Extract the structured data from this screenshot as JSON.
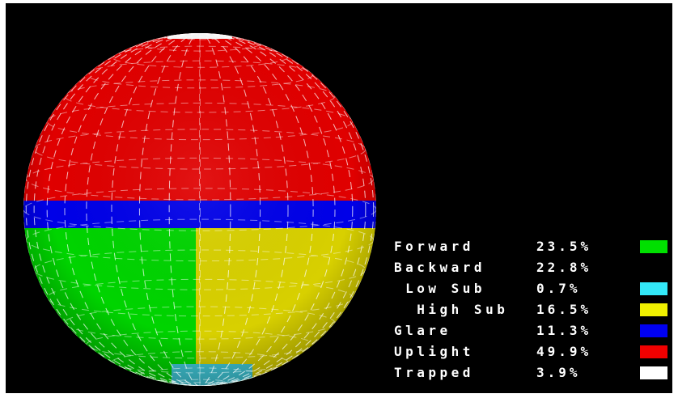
{
  "background_color": "#000000",
  "sphere": {
    "regions": [
      {
        "name": "uplight-region",
        "color": "#e00000"
      },
      {
        "name": "glare-region",
        "color": "#0000e8"
      },
      {
        "name": "forward-region",
        "color": "#00d400"
      },
      {
        "name": "high-sub-region",
        "color": "#d8d000"
      },
      {
        "name": "low-sub-region",
        "color": "#40c8d8"
      },
      {
        "name": "trapped-region",
        "color": "#f4f4f4"
      }
    ]
  },
  "legend": {
    "rows": [
      {
        "label": "Forward",
        "value": "23.5%",
        "color": "#00e000"
      },
      {
        "label": "Backward",
        "value": "22.8%",
        "color": null
      },
      {
        "label": " Low Sub",
        "value": "0.7%",
        "color": "#33e8f8"
      },
      {
        "label": "  High Sub",
        "value": "16.5%",
        "color": "#f0f000"
      },
      {
        "label": "Glare",
        "value": "11.3%",
        "color": "#0000f0"
      },
      {
        "label": "Uplight",
        "value": "49.9%",
        "color": "#f00000"
      },
      {
        "label": "Trapped",
        "value": "3.9%",
        "color": "#ffffff"
      }
    ]
  }
}
